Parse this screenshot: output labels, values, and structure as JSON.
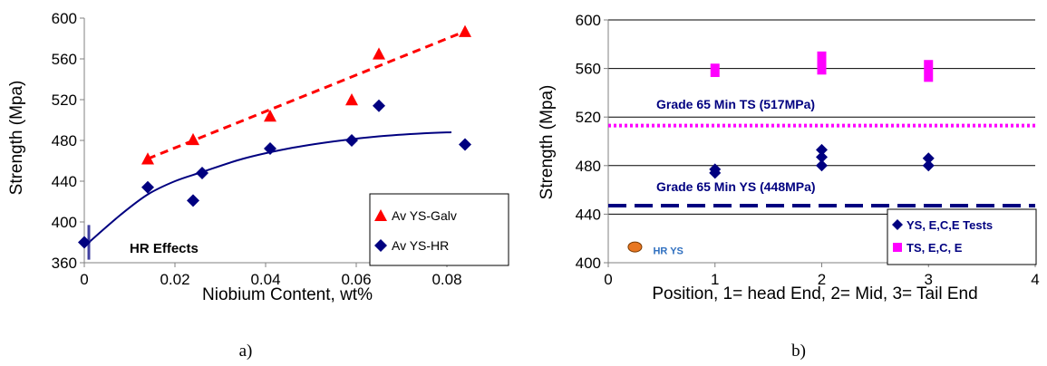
{
  "chart_data": [
    {
      "panel_label": "a)",
      "type": "scatter",
      "xlabel": "Niobium Content, wt%",
      "ylabel": "Strength (Mpa)",
      "xlim": [
        0,
        0.09
      ],
      "ylim": [
        360,
        600
      ],
      "x_ticks": [
        0,
        0.02,
        0.04,
        0.06,
        0.08
      ],
      "x_tick_labels": [
        "0",
        "0.02",
        "0.04",
        "0.06",
        "0.08"
      ],
      "y_ticks": [
        360,
        400,
        440,
        480,
        520,
        560,
        600
      ],
      "y_tick_labels": [
        "360",
        "400",
        "440",
        "480",
        "520",
        "560",
        "600"
      ],
      "grid": false,
      "legend_position": "bottom-right",
      "annotations": [
        {
          "text": "HR Effects",
          "x": 0.006,
          "y": 375
        }
      ],
      "marker": {
        "x": 0.001,
        "y0": 363,
        "y1": 397
      },
      "series": [
        {
          "name": "Av YS-Galv",
          "marker": "triangle",
          "color": "#ff0000",
          "points": [
            [
              0.014,
              462
            ],
            [
              0.024,
              481
            ],
            [
              0.041,
              504
            ],
            [
              0.059,
              520
            ],
            [
              0.065,
              565
            ],
            [
              0.084,
              587
            ]
          ],
          "trend": {
            "style": "dashed",
            "points": [
              [
                0.014,
                462
              ],
              [
                0.084,
                587
              ]
            ]
          }
        },
        {
          "name": "Av YS-HR",
          "marker": "diamond",
          "color": "#000080",
          "points": [
            [
              0,
              380
            ],
            [
              0.014,
              434
            ],
            [
              0.024,
              421
            ],
            [
              0.026,
              448
            ],
            [
              0.041,
              472
            ],
            [
              0.059,
              480
            ],
            [
              0.065,
              514
            ],
            [
              0.084,
              476
            ]
          ],
          "trend": {
            "style": "solid",
            "points": [
              [
                0.001,
                380
              ],
              [
                0.008,
                407
              ],
              [
                0.014,
                427
              ],
              [
                0.02,
                440
              ],
              [
                0.026,
                449
              ],
              [
                0.035,
                462
              ],
              [
                0.045,
                472
              ],
              [
                0.055,
                479
              ],
              [
                0.065,
                484
              ],
              [
                0.075,
                487
              ],
              [
                0.081,
                488
              ]
            ]
          }
        }
      ]
    },
    {
      "panel_label": "b)",
      "type": "scatter",
      "xlabel": "Position, 1= head End, 2= Mid, 3= Tail End",
      "ylabel": "Strength (Mpa)",
      "xlim": [
        0,
        4
      ],
      "ylim": [
        400,
        600
      ],
      "x_ticks": [
        0,
        1,
        2,
        3,
        4
      ],
      "x_tick_labels": [
        "0",
        "1",
        "2",
        "3",
        "4"
      ],
      "y_ticks": [
        400,
        440,
        480,
        520,
        560,
        600
      ],
      "y_tick_labels": [
        "400",
        "440",
        "480",
        "520",
        "560",
        "600"
      ],
      "grid": true,
      "legend_position": "bottom-right",
      "reference_lines": [
        {
          "label": "Grade 65 Min TS (517MPa)",
          "y": 513,
          "style": "dotted",
          "color": "#ff00ff",
          "label_x": 0.45,
          "label_y": 527
        },
        {
          "label": "Grade 65 Min YS (448MPa)",
          "y": 447,
          "style": "dashed",
          "color": "#000080",
          "label_x": 0.45,
          "label_y": 459
        }
      ],
      "annotations": [
        {
          "text": "HR YS",
          "x": 0.42,
          "y": 411,
          "color": "#3070c0"
        }
      ],
      "series": [
        {
          "name": "YS, E,C,E Tests",
          "marker": "diamond",
          "color": "#000080",
          "points": [
            [
              1,
              474
            ],
            [
              1,
              477
            ],
            [
              2,
              480
            ],
            [
              2,
              487
            ],
            [
              2,
              493
            ],
            [
              3,
              480
            ],
            [
              3,
              486
            ]
          ]
        },
        {
          "name": "TS, E,C, E",
          "marker": "square",
          "color": "#ff00ff",
          "bars": [
            [
              1,
              553,
              564
            ],
            [
              2,
              555,
              574
            ],
            [
              3,
              549,
              567
            ]
          ]
        },
        {
          "name": "HR YS",
          "marker": "circle",
          "color": "#e87722",
          "points": [
            [
              0.25,
              413
            ]
          ]
        }
      ]
    }
  ]
}
